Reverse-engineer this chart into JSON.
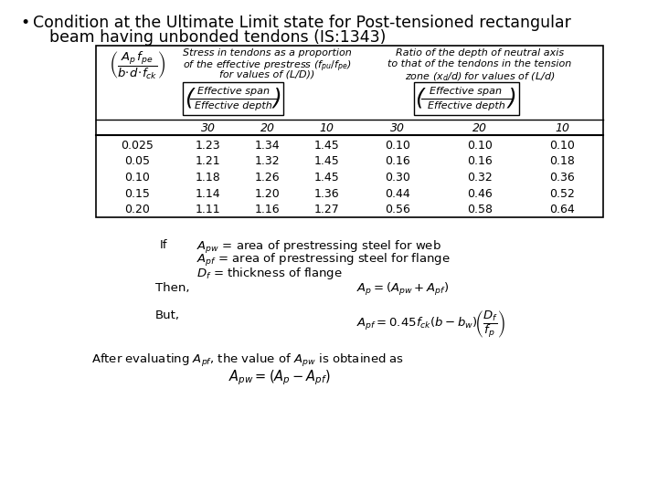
{
  "bg_color": "#ffffff",
  "title_line1": "Condition at the Ultimate Limit state for Post-tensioned rectangular",
  "title_line2": "beam having unbonded tendons (IS:1343)",
  "row_data": [
    [
      0.025,
      1.23,
      1.34,
      1.45,
      0.1,
      0.1,
      0.1
    ],
    [
      0.05,
      1.21,
      1.32,
      1.45,
      0.16,
      0.16,
      0.18
    ],
    [
      0.1,
      1.18,
      1.26,
      1.45,
      0.3,
      0.32,
      0.36
    ],
    [
      0.15,
      1.14,
      1.2,
      1.36,
      0.44,
      0.46,
      0.52
    ],
    [
      0.2,
      1.11,
      1.16,
      1.27,
      0.56,
      0.58,
      0.64
    ]
  ],
  "row0_labels": [
    "0.025",
    "0.05",
    "0.10",
    "0.15",
    "0.20"
  ],
  "col_nums": [
    "30",
    "20",
    "10",
    "30",
    "20",
    "10"
  ]
}
